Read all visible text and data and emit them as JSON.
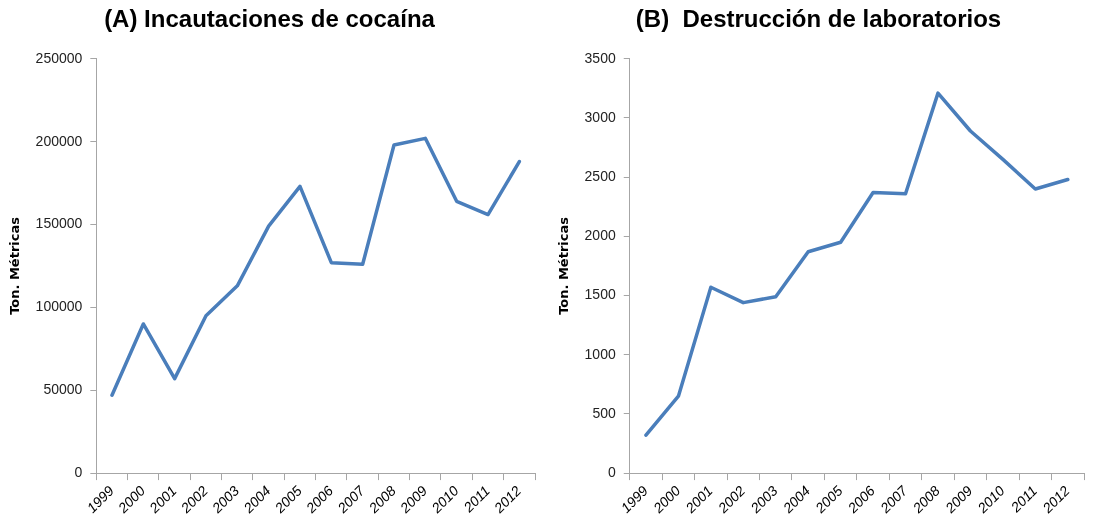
{
  "chart_data": [
    {
      "type": "line",
      "title": "(A) Incautaciones de cocaína",
      "ylabel": "Ton. Métricas",
      "categories": [
        "1999",
        "2000",
        "2001",
        "2002",
        "2003",
        "2004",
        "2005",
        "2006",
        "2007",
        "2008",
        "2009",
        "2010",
        "2011",
        "2012"
      ],
      "series": [
        {
          "color": "#4a7ebb",
          "values": [
            47000,
            90000,
            57000,
            95000,
            113000,
            149000,
            173000,
            127000,
            126000,
            198000,
            202000,
            164000,
            156000,
            188000
          ]
        }
      ],
      "ylim": [
        0,
        250000
      ],
      "yticks": [
        0,
        50000,
        100000,
        150000,
        200000,
        250000
      ],
      "grid": false,
      "legend": false,
      "marker": "none",
      "line_style": "solid"
    },
    {
      "type": "line",
      "title": "(B)  Destrucción de laboratorios",
      "ylabel": "Ton. Métricas",
      "categories": [
        "1999",
        "2000",
        "2001",
        "2002",
        "2003",
        "2004",
        "2005",
        "2006",
        "2007",
        "2008",
        "2009",
        "2010",
        "2011",
        "2012"
      ],
      "series": [
        {
          "color": "#4a7ebb",
          "values": [
            320,
            650,
            1570,
            1440,
            1490,
            1870,
            1950,
            2370,
            2360,
            3210,
            2890,
            2650,
            2400,
            2480
          ]
        }
      ],
      "ylim": [
        0,
        3500
      ],
      "yticks": [
        0,
        500,
        1000,
        1500,
        2000,
        2500,
        3000,
        3500
      ],
      "grid": false,
      "legend": false,
      "marker": "none",
      "line_style": "solid"
    }
  ]
}
